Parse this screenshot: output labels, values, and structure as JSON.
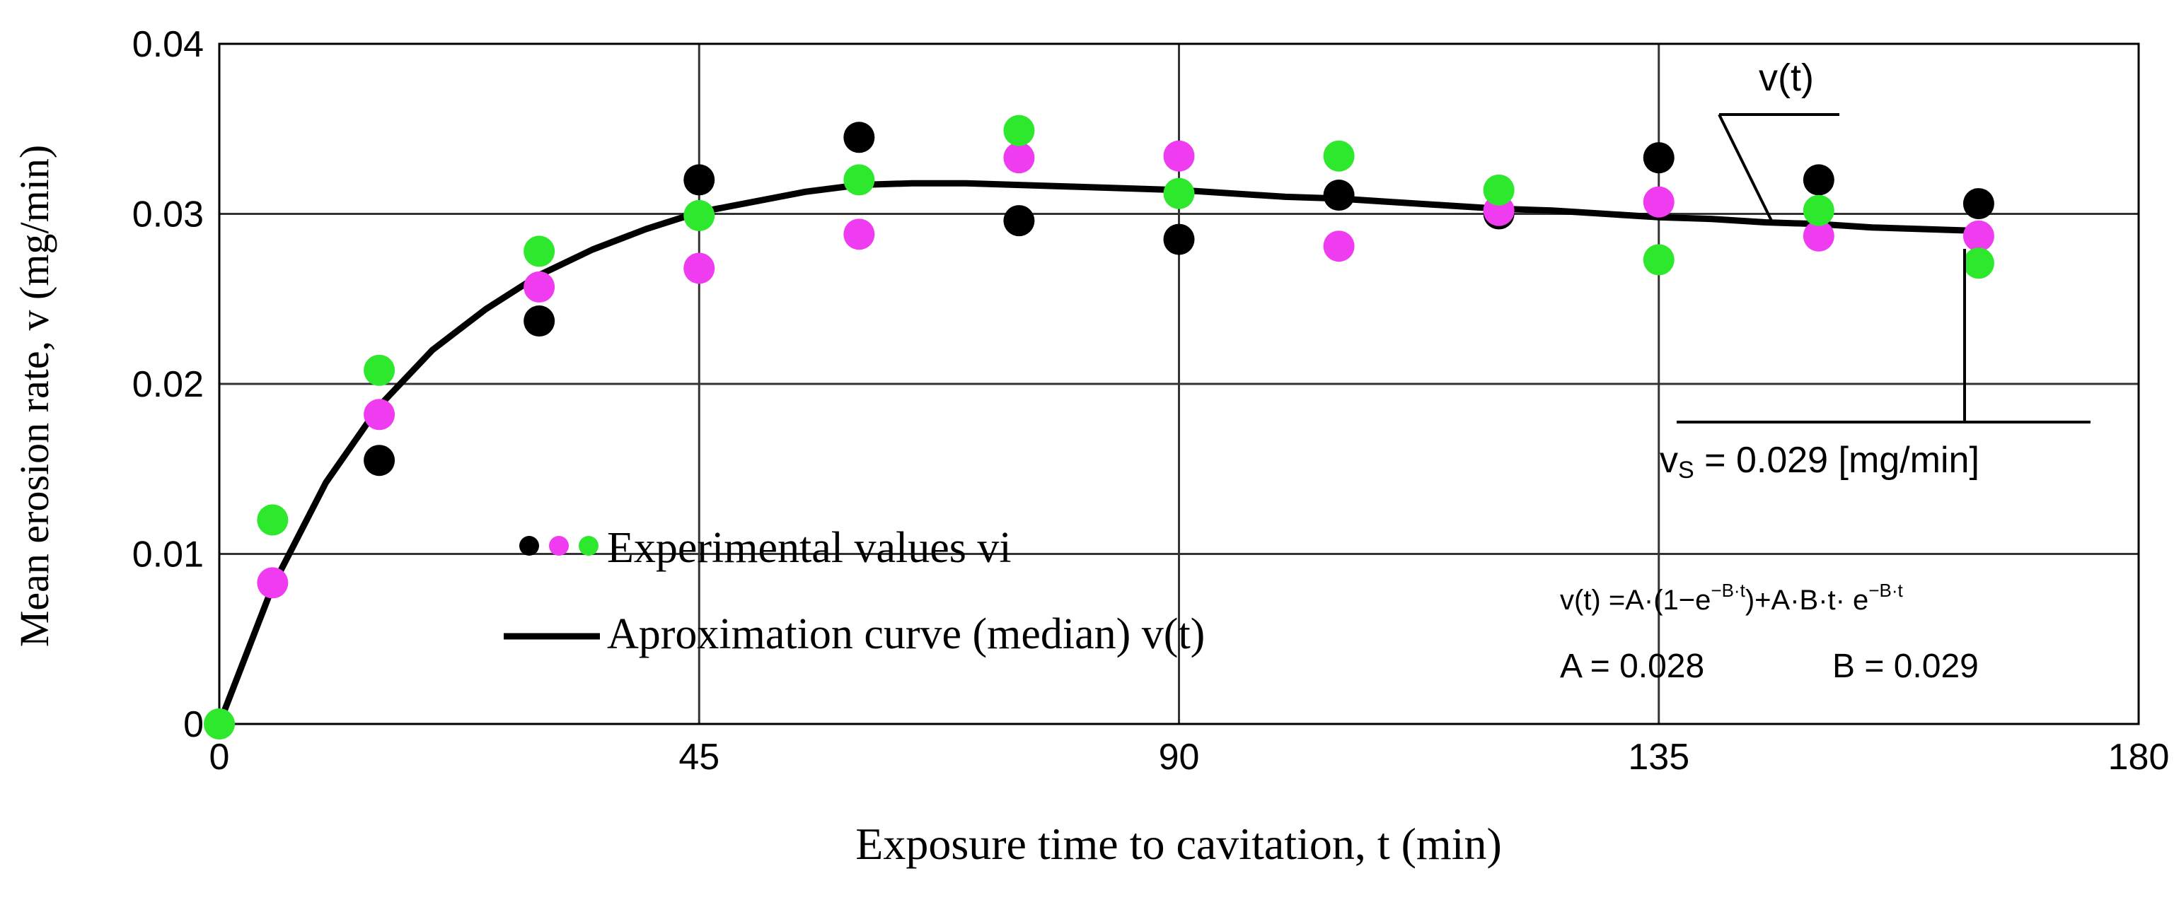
{
  "chart_data": {
    "type": "scatter",
    "title": "",
    "xlabel": "Exposure time  to cavitation, t (min)",
    "ylabel": "Mean erosion rate, v (mg/min)",
    "xlim": [
      0,
      180
    ],
    "ylim": [
      0,
      0.04
    ],
    "xticks": [
      0,
      45,
      90,
      135,
      180
    ],
    "xtick_labels": [
      "0",
      "45",
      "90",
      "135",
      "180"
    ],
    "yticks": [
      0,
      0.01,
      0.02,
      0.03,
      0.04
    ],
    "ytick_labels": [
      "0",
      "0.01",
      "0.02",
      "0.03",
      "0.04"
    ],
    "grid": true,
    "series": [
      {
        "name": "Experimental values vi (black)",
        "color": "#000000",
        "x": [
          15,
          30,
          45,
          60,
          75,
          90,
          105,
          120,
          135,
          150,
          165
        ],
        "y": [
          0.0155,
          0.0237,
          0.032,
          0.0345,
          0.0296,
          0.0285,
          0.0311,
          0.03,
          0.0333,
          0.032,
          0.0306
        ]
      },
      {
        "name": "Experimental values vi (magenta)",
        "color": "#f03cf0",
        "x": [
          5,
          15,
          30,
          45,
          60,
          75,
          90,
          105,
          120,
          135,
          150,
          165
        ],
        "y": [
          0.0083,
          0.0182,
          0.0257,
          0.0268,
          0.0288,
          0.0333,
          0.0334,
          0.0281,
          0.0302,
          0.0307,
          0.0287,
          0.0287
        ]
      },
      {
        "name": "Experimental values vi (green)",
        "color": "#2ee82e",
        "x": [
          0,
          5,
          15,
          30,
          45,
          60,
          75,
          90,
          105,
          120,
          135,
          150,
          165
        ],
        "y": [
          0,
          0.012,
          0.0208,
          0.0278,
          0.0299,
          0.032,
          0.0349,
          0.0312,
          0.0334,
          0.0314,
          0.0273,
          0.0302,
          0.0271
        ]
      },
      {
        "name": "Aproximation curve (median) v(t)",
        "type": "line",
        "color": "#000000",
        "x": [
          0,
          5,
          10,
          15,
          20,
          25,
          30,
          35,
          40,
          45,
          50,
          55,
          60,
          65,
          70,
          75,
          80,
          85,
          90,
          95,
          100,
          105,
          110,
          115,
          120,
          125,
          130,
          135,
          140,
          145,
          150,
          155,
          160,
          165
        ],
        "y": [
          0,
          0.0081,
          0.0142,
          0.0187,
          0.022,
          0.0244,
          0.0264,
          0.0279,
          0.0291,
          0.0301,
          0.0307,
          0.0313,
          0.0317,
          0.0318,
          0.0318,
          0.0317,
          0.0316,
          0.0315,
          0.0314,
          0.0312,
          0.031,
          0.0309,
          0.0307,
          0.0305,
          0.0303,
          0.0302,
          0.03,
          0.0298,
          0.0297,
          0.0295,
          0.0294,
          0.0292,
          0.0291,
          0.029
        ]
      }
    ],
    "legend": {
      "placement": "bottom-left",
      "entries": [
        "Experimental values vi",
        "Aproximation curve (median) v(t)"
      ],
      "marker_colors": [
        "#000000",
        "#f03cf0",
        "#2ee82e"
      ]
    },
    "annotations": {
      "curve_label": "v(t)",
      "vs_label_main": "v",
      "vs_label_sub": "S",
      "vs_label_rest": " = 0.029 [mg/min]",
      "vs_value": 0.029,
      "vs_time": 165,
      "formula_parts": {
        "p1": "v(t) =A·(1−e",
        "sup1": "−B·t",
        "p2": ")+A·B·t· e",
        "sup2": "−B·t"
      },
      "param_a": "A = 0.028",
      "param_b": "B = 0.029"
    }
  }
}
